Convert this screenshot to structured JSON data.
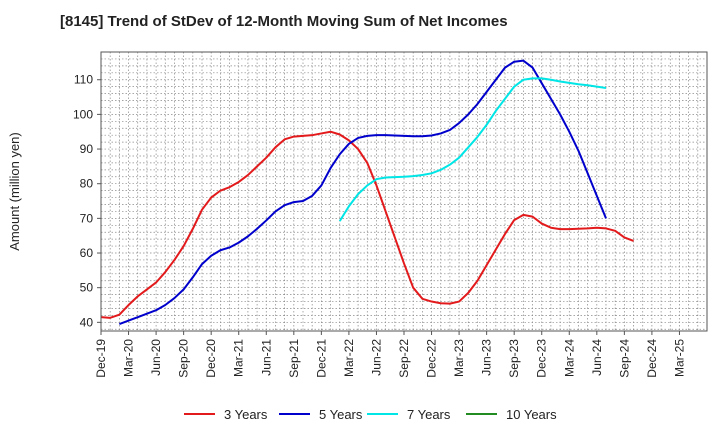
{
  "chart_data": {
    "type": "line",
    "title": "[8145]  Trend of StDev of 12-Month Moving Sum of Net Incomes",
    "xlabel": "",
    "ylabel": "Amount (million yen)",
    "ylim": [
      37.5,
      118
    ],
    "yticks": [
      40,
      50,
      60,
      70,
      80,
      90,
      100,
      110
    ],
    "xlim": [
      0,
      66
    ],
    "xticks": [
      {
        "i": 0,
        "label": "Dec-19"
      },
      {
        "i": 3,
        "label": "Mar-20"
      },
      {
        "i": 6,
        "label": "Jun-20"
      },
      {
        "i": 9,
        "label": "Sep-20"
      },
      {
        "i": 12,
        "label": "Dec-20"
      },
      {
        "i": 15,
        "label": "Mar-21"
      },
      {
        "i": 18,
        "label": "Jun-21"
      },
      {
        "i": 21,
        "label": "Sep-21"
      },
      {
        "i": 24,
        "label": "Dec-21"
      },
      {
        "i": 27,
        "label": "Mar-22"
      },
      {
        "i": 30,
        "label": "Jun-22"
      },
      {
        "i": 33,
        "label": "Sep-22"
      },
      {
        "i": 36,
        "label": "Dec-22"
      },
      {
        "i": 39,
        "label": "Mar-23"
      },
      {
        "i": 42,
        "label": "Jun-23"
      },
      {
        "i": 45,
        "label": "Sep-23"
      },
      {
        "i": 48,
        "label": "Dec-23"
      },
      {
        "i": 51,
        "label": "Mar-24"
      },
      {
        "i": 54,
        "label": "Jun-24"
      },
      {
        "i": 57,
        "label": "Sep-24"
      },
      {
        "i": 60,
        "label": "Dec-24"
      },
      {
        "i": 63,
        "label": "Mar-25"
      }
    ],
    "grid": true,
    "legend": "bottom",
    "series": [
      {
        "name": "3 Years",
        "color": "#e31a1c",
        "start": 0,
        "values": [
          41.5,
          41.3,
          42.2,
          45,
          47.5,
          49.5,
          51.5,
          54.5,
          58,
          62,
          67,
          72.5,
          76,
          78,
          79,
          80.5,
          82.5,
          85,
          87.5,
          90.5,
          92.8,
          93.6,
          93.8,
          94,
          94.5,
          95,
          94.2,
          92.5,
          90,
          86,
          79.5,
          72,
          64.5,
          57,
          50,
          46.8,
          46,
          45.5,
          45.4,
          46,
          48.5,
          52,
          56.5,
          61,
          65.5,
          69.5,
          71,
          70.5,
          68.5,
          67.3,
          66.9,
          66.9,
          67,
          67.1,
          67.3,
          67.1,
          66.4,
          64.5,
          63.5
        ]
      },
      {
        "name": "5 Years",
        "color": "#0000cc",
        "start": 2,
        "values": [
          39.5,
          40.5,
          41.5,
          42.5,
          43.5,
          45,
          47,
          49.5,
          53,
          56.8,
          59.2,
          60.8,
          61.6,
          63,
          64.8,
          67,
          69.4,
          72,
          73.8,
          74.7,
          75,
          76.5,
          79.5,
          84.5,
          88.5,
          91.5,
          93.2,
          93.8,
          94,
          94,
          93.9,
          93.8,
          93.7,
          93.7,
          93.9,
          94.5,
          95.5,
          97.5,
          100,
          103,
          106.5,
          110,
          113.5,
          115.2,
          115.5,
          113.5,
          109,
          104.5,
          100,
          95,
          89.5,
          83,
          76.5,
          70
        ]
      },
      {
        "name": "7 Years",
        "color": "#00e5e5",
        "start": 26,
        "values": [
          69.2,
          73.5,
          77,
          79.5,
          81.3,
          81.8,
          81.9,
          82,
          82.2,
          82.5,
          83,
          84,
          85.5,
          87.5,
          90.5,
          93.5,
          97,
          101,
          104.5,
          108,
          110,
          110.4,
          110.4,
          110,
          109.5,
          109.1,
          108.7,
          108.4,
          108,
          107.6
        ]
      },
      {
        "name": "10 Years",
        "color": "#228b22",
        "start": 0,
        "values": []
      }
    ]
  }
}
